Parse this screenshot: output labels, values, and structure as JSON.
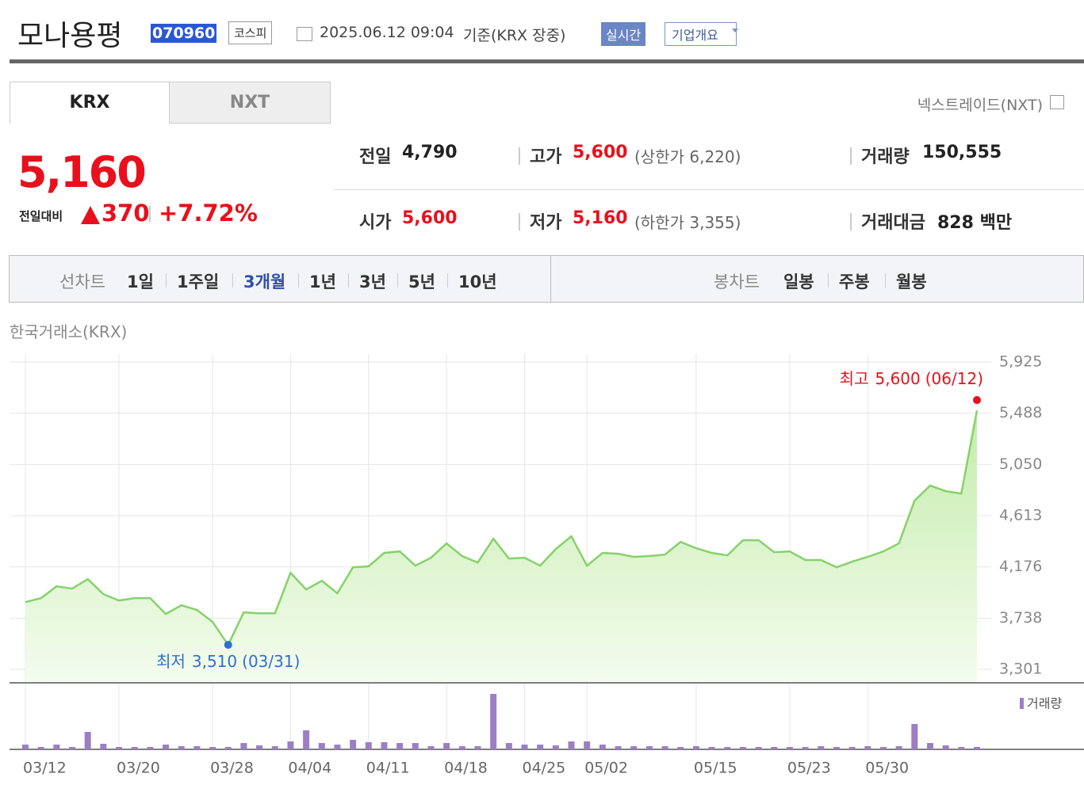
{
  "header": {
    "name": "모나용평",
    "code": "070960",
    "market": "코스피",
    "timestamp": "2025.06.12 09:04",
    "basis": "기준(KRX 장중)",
    "realtime": "실시간",
    "company_info": "기업개요"
  },
  "tabs": [
    "KRX",
    "NXT"
  ],
  "nxt_link": "넥스트레이드(NXT)",
  "price": {
    "current": "5,160",
    "change_label": "전일대비",
    "change": "370",
    "change_rate": "+7.72%"
  },
  "stats": [
    {
      "label": "전일",
      "value": "4,790"
    },
    {
      "label": "고가",
      "value": "5,600",
      "note": "(상한가 6,220)"
    },
    {
      "label": "거래량",
      "value": "150,555"
    },
    {
      "label": "시가",
      "value": "5,600"
    },
    {
      "label": "저가",
      "value": "5,160",
      "note": "(하한가 3,355)"
    },
    {
      "label": "거래대금",
      "value": "828 백만"
    }
  ],
  "periods": {
    "line_label": "선차트",
    "line": [
      "1일",
      "1주일",
      "3개월",
      "1년",
      "3년",
      "5년",
      "10년"
    ],
    "active": "3개월",
    "candle_label": "봉차트",
    "candle": [
      "일봉",
      "주봉",
      "월봉"
    ]
  },
  "chart_data": {
    "type": "line",
    "source": "한국거래소(KRX)",
    "color": "#86d26a",
    "categories": [
      "03/12",
      null,
      null,
      null,
      null,
      null,
      "03/20",
      null,
      null,
      null,
      null,
      null,
      "03/28",
      null,
      null,
      null,
      null,
      "04/04",
      null,
      null,
      null,
      null,
      "04/11",
      null,
      null,
      null,
      null,
      "04/18",
      null,
      null,
      null,
      null,
      "04/25",
      null,
      null,
      null,
      "05/02",
      null,
      null,
      null,
      null,
      null,
      null,
      "05/15",
      null,
      null,
      null,
      null,
      null,
      "05/23",
      null,
      null,
      null,
      null,
      "05/30",
      null,
      null,
      null,
      null,
      null,
      null,
      null
    ],
    "values": [
      3875,
      3909,
      4010,
      3990,
      4071,
      3943,
      3889,
      3909,
      3909,
      3774,
      3848,
      3808,
      3706,
      3510,
      3787,
      3780,
      3780,
      4125,
      3983,
      4058,
      3950,
      4173,
      4180,
      4295,
      4308,
      4186,
      4254,
      4376,
      4268,
      4213,
      4416,
      4247,
      4254,
      4186,
      4328,
      4437,
      4186,
      4295,
      4288,
      4261,
      4268,
      4281,
      4389,
      4335,
      4295,
      4274,
      4403,
      4403,
      4301,
      4308,
      4234,
      4234,
      4173,
      4220,
      4261,
      4308,
      4376,
      4741,
      4870,
      4822,
      4802,
      5512
    ],
    "ylim": [
      3186,
      5925
    ],
    "yticks": [
      {
        "value": 3301,
        "label": "3,301"
      },
      {
        "value": 3738,
        "label": "3,738"
      },
      {
        "value": 4176,
        "label": "4,176"
      },
      {
        "value": 4613,
        "label": "4,613"
      },
      {
        "value": 5050,
        "label": "5,050"
      },
      {
        "value": 5488,
        "label": "5,488"
      },
      {
        "value": 5925,
        "label": "5,925"
      }
    ],
    "grid": true,
    "annotations": [
      {
        "label": "최고",
        "value": 5600,
        "value_label": "5,600",
        "date": "(06/12)",
        "color": "#e8101c"
      },
      {
        "label": "최저",
        "value": 3510,
        "value_label": "3,510",
        "date": "(03/31)",
        "color": "#2f6fd0"
      }
    ],
    "volume": {
      "name": "거래량",
      "color": "#9b7fc4",
      "ylim": [
        0,
        76
      ],
      "values": [
        6,
        3,
        6,
        3,
        22,
        7,
        3,
        3,
        3,
        6,
        4,
        4,
        3,
        3,
        8,
        5,
        4,
        10,
        24,
        8,
        6,
        12,
        9,
        9,
        8,
        8,
        4,
        8,
        4,
        4,
        70,
        8,
        6,
        6,
        5,
        10,
        10,
        6,
        4,
        4,
        4,
        4,
        3,
        4,
        3,
        3,
        3,
        3,
        3,
        3,
        3,
        4,
        3,
        3,
        4,
        3,
        4,
        32,
        8,
        5,
        3,
        3
      ]
    }
  }
}
